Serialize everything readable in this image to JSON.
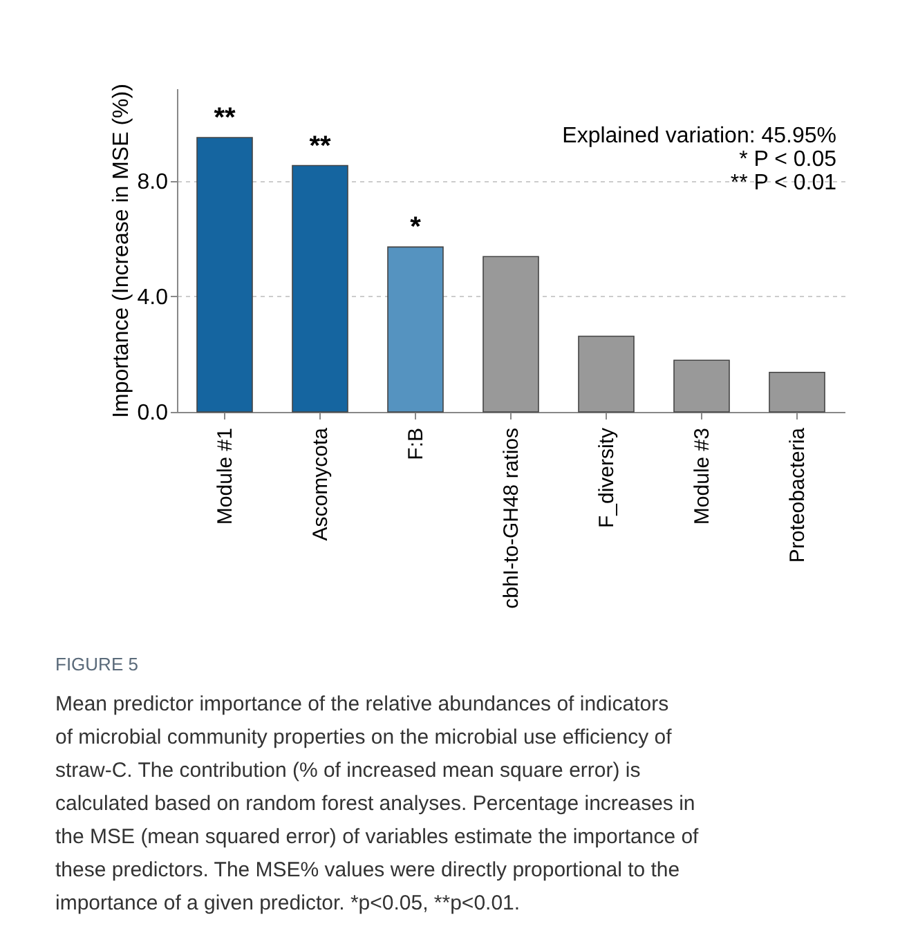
{
  "chart_data": {
    "type": "bar",
    "ylabel": "Importance (Increase in MSE (%))",
    "categories": [
      "Module #1",
      "Ascomycota",
      "F:B",
      "cbhI-to-GH48 ratios",
      "F_diversity",
      "Module #3",
      "Proteobacteria"
    ],
    "values": [
      9.5,
      8.53,
      5.71,
      5.38,
      2.62,
      1.79,
      1.37
    ],
    "colors": [
      "#1565a0",
      "#1565a0",
      "#5593c0",
      "#999999",
      "#999999",
      "#999999",
      "#999999"
    ],
    "ylim": [
      0,
      11.2
    ],
    "yticks": [
      {
        "value": 0,
        "label": "0.0"
      },
      {
        "value": 4,
        "label": "4.0"
      },
      {
        "value": 8,
        "label": "8.0"
      }
    ],
    "grid": "y",
    "annotations": [
      {
        "text": "**",
        "x": "Module #1",
        "y": 9.5
      },
      {
        "text": "**",
        "x": "Ascomycota",
        "y": 8.53
      },
      {
        "text": "*",
        "x": "F:B",
        "y": 5.71
      },
      "Explained variation: 45.95%",
      "* P < 0.05",
      "** P < 0.01",
      "FIGURE 5",
      "Mean predictor importance of the relative abundances of indicators of microbial community properties on the microbial use efficiency of straw-C. The contribution (% of increased mean square error) is calculated based on random forest analyses. Percentage increases in the MSE (mean squared error) of variables estimate the importance of these predictors. The MSE% values were directly proportional to the importance of a given predictor. *p<0.05, **p<0.01."
    ]
  }
}
